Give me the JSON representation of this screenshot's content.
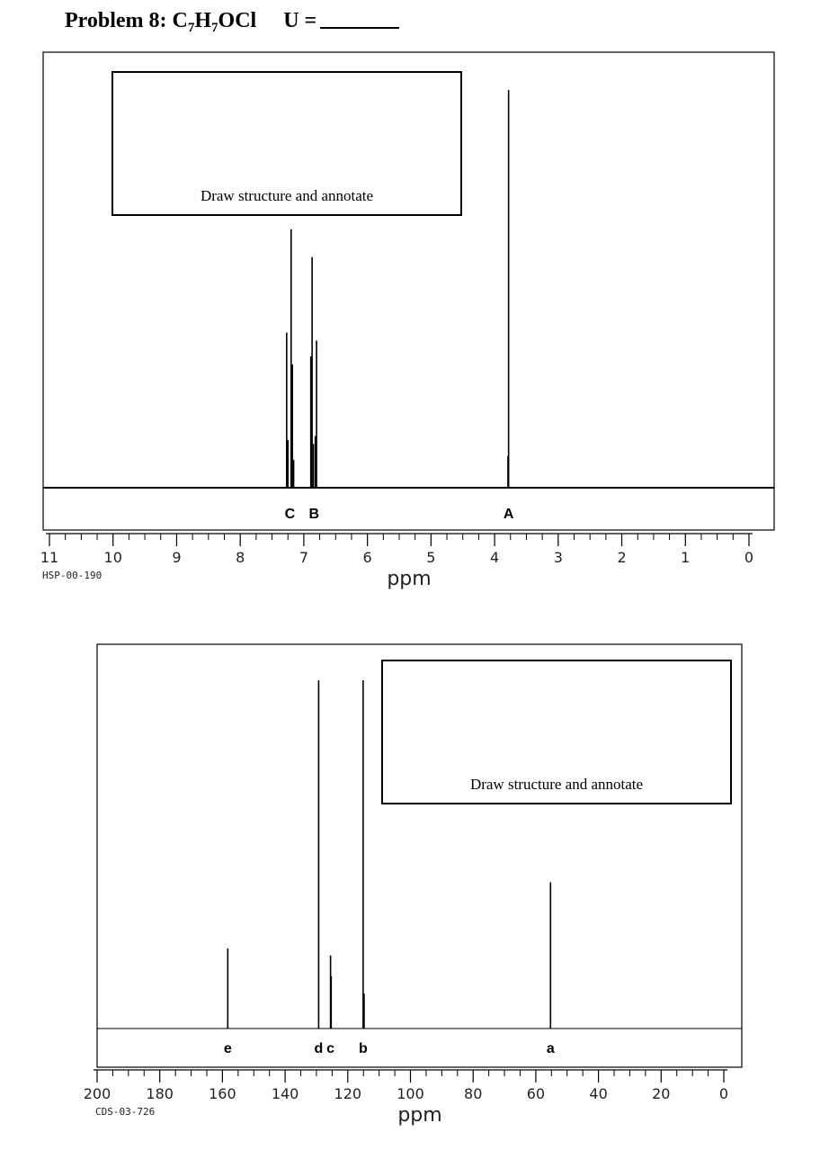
{
  "title": {
    "problem": "Problem 8: C",
    "sub1": "7",
    "h": "H",
    "sub2": "7",
    "rest": "OCl",
    "u_label": "U ="
  },
  "chart_data": [
    {
      "type": "line",
      "spectrum": "1H NMR",
      "code": "HSP-00-190",
      "xlabel": "ppm",
      "xlim": [
        11,
        0
      ],
      "xticks": [
        11,
        10,
        9,
        8,
        7,
        6,
        5,
        4,
        3,
        2,
        1,
        0
      ],
      "box_text": "Draw structure and annotate",
      "peaks": [
        {
          "ppm": 7.27,
          "height": 0.39
        },
        {
          "ppm": 7.25,
          "height": 0.12
        },
        {
          "ppm": 7.2,
          "height": 0.65
        },
        {
          "ppm": 7.18,
          "height": 0.31
        },
        {
          "ppm": 7.16,
          "height": 0.07
        },
        {
          "ppm": 6.89,
          "height": 0.33
        },
        {
          "ppm": 6.87,
          "height": 0.58
        },
        {
          "ppm": 6.85,
          "height": 0.11
        },
        {
          "ppm": 6.82,
          "height": 0.13
        },
        {
          "ppm": 6.8,
          "height": 0.37
        },
        {
          "ppm": 3.79,
          "height": 0.08
        },
        {
          "ppm": 3.78,
          "height": 1.0
        }
      ],
      "peak_labels": [
        {
          "label": "C",
          "ppm": 7.22
        },
        {
          "label": "B",
          "ppm": 6.84
        },
        {
          "label": "A",
          "ppm": 3.78
        }
      ]
    },
    {
      "type": "line",
      "spectrum": "13C NMR",
      "code": "CDS-03-726",
      "xlabel": "ppm",
      "xlim": [
        200,
        0
      ],
      "xticks": [
        200,
        180,
        160,
        140,
        120,
        100,
        80,
        60,
        40,
        20,
        0
      ],
      "box_text": "Draw structure and annotate",
      "peaks": [
        {
          "ppm": 158.3,
          "height": 0.23
        },
        {
          "ppm": 129.3,
          "height": 1.0
        },
        {
          "ppm": 125.5,
          "height": 0.21
        },
        {
          "ppm": 125.3,
          "height": 0.15
        },
        {
          "ppm": 115.1,
          "height": 1.0
        },
        {
          "ppm": 114.8,
          "height": 0.1
        },
        {
          "ppm": 55.3,
          "height": 0.42
        }
      ],
      "peak_labels": [
        {
          "label": "e",
          "ppm": 158.3
        },
        {
          "label": "d",
          "ppm": 129.3
        },
        {
          "label": "c",
          "ppm": 125.5
        },
        {
          "label": "b",
          "ppm": 115.1
        },
        {
          "label": "a",
          "ppm": 55.3
        }
      ]
    }
  ]
}
